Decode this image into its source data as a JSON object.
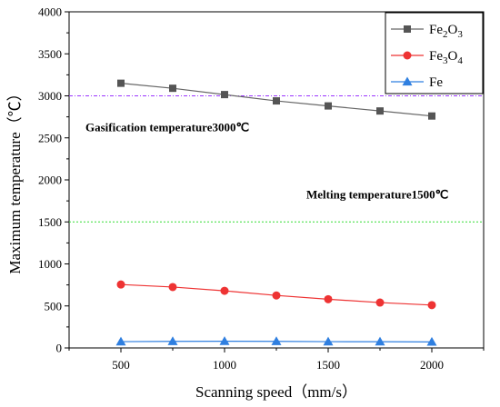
{
  "chart_data": {
    "type": "line",
    "xlabel": "Scanning speed（mm/s）",
    "ylabel": "Maximum temperature（℃）",
    "xlim": [
      250,
      2250
    ],
    "ylim": [
      0,
      4000
    ],
    "x_ticks": [
      500,
      1000,
      1500,
      2000
    ],
    "y_ticks": [
      0,
      500,
      1000,
      1500,
      2000,
      2500,
      3000,
      3500,
      4000
    ],
    "x": [
      500,
      750,
      1000,
      1250,
      1500,
      1750,
      2000
    ],
    "series": [
      {
        "name": "Fe2O3",
        "legend_main": "Fe",
        "legend_sub1": "2",
        "legend_mid": "O",
        "legend_sub2": "3",
        "marker": "square",
        "color": "#555555",
        "line_color": "#666666",
        "values": [
          3150,
          3090,
          3015,
          2940,
          2880,
          2820,
          2760
        ]
      },
      {
        "name": "Fe3O4",
        "legend_main": "Fe",
        "legend_sub1": "3",
        "legend_mid": "O",
        "legend_sub2": "4",
        "marker": "circle",
        "color": "#ee3333",
        "line_color": "#ee3333",
        "values": [
          755,
          725,
          680,
          625,
          580,
          540,
          510
        ]
      },
      {
        "name": "Fe",
        "legend_main": "Fe",
        "legend_sub1": "",
        "legend_mid": "",
        "legend_sub2": "",
        "marker": "triangle",
        "color": "#2f7fe0",
        "line_color": "#2f7fe0",
        "values": [
          75,
          78,
          80,
          78,
          75,
          74,
          72
        ]
      }
    ],
    "reference_lines": [
      {
        "y": 3000,
        "color": "#9933ff",
        "label": "Gasification temperature3000℃"
      },
      {
        "y": 1500,
        "color": "#33dd33",
        "label": "Melting temperature1500℃"
      }
    ],
    "legend_position": "top-right",
    "grid": false
  }
}
